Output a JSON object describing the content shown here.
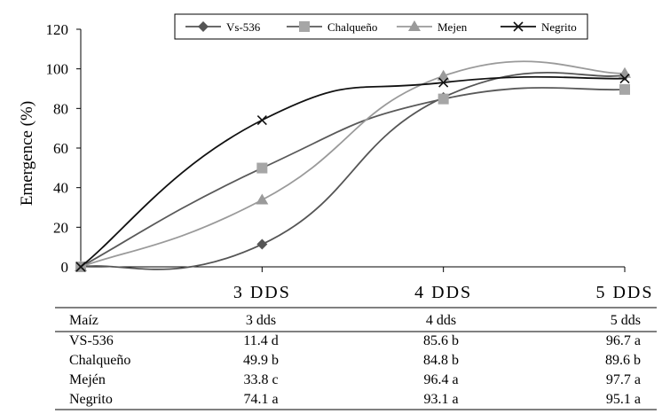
{
  "chart_data": {
    "type": "line",
    "ylabel": "Emergence (%)",
    "xlabel": "",
    "ylim": [
      0,
      120
    ],
    "yticks": [
      0,
      20,
      40,
      60,
      80,
      100,
      120
    ],
    "categories": [
      "",
      "3 DDS",
      "4 DDS",
      "5 DDS"
    ],
    "legend_position": "top-right",
    "grid": false,
    "series": [
      {
        "name": "Vs-536",
        "values": [
          0,
          11.4,
          85.6,
          96.7
        ],
        "color": "#555555",
        "marker": "diamond"
      },
      {
        "name": "Chalqueño",
        "values": [
          0,
          49.9,
          84.8,
          89.6
        ],
        "color": "#595959",
        "marker": "square"
      },
      {
        "name": "Mejen",
        "values": [
          0,
          33.8,
          96.4,
          97.7
        ],
        "color": "#9a9a9a",
        "marker": "triangle"
      },
      {
        "name": "Negrito",
        "values": [
          0,
          74.1,
          93.1,
          95.1
        ],
        "color": "#111111",
        "marker": "x"
      }
    ]
  },
  "table": {
    "headers": [
      "Maíz",
      "3 dds",
      "4 dds",
      "5 dds"
    ],
    "rows": [
      [
        "VS-536",
        "11.4 d",
        "85.6 b",
        "96.7 a"
      ],
      [
        "Chalqueño",
        "49.9 b",
        "84.8 b",
        "89.6 b"
      ],
      [
        "Mején",
        "33.8 c",
        "96.4 a",
        "97.7 a"
      ],
      [
        "Negrito",
        "74.1 a",
        "93.1 a",
        "95.1 a"
      ]
    ]
  }
}
